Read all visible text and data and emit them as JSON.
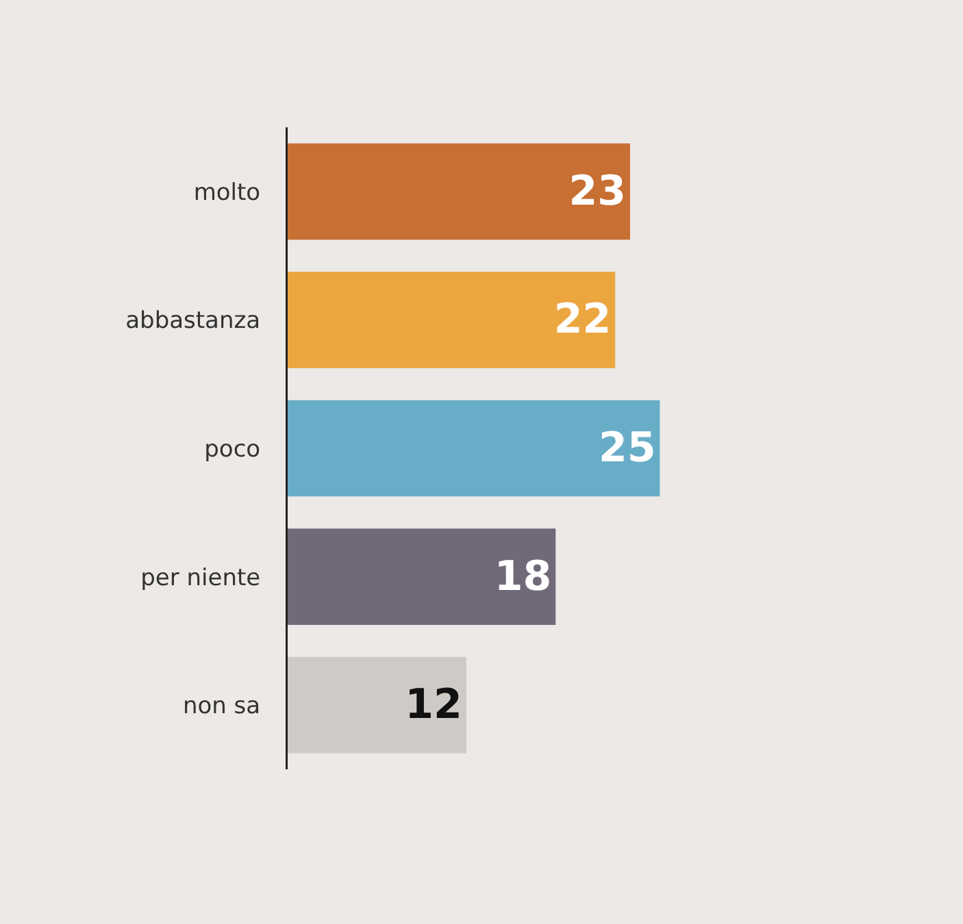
{
  "chart_data": {
    "type": "bar",
    "orientation": "horizontal",
    "categories": [
      "molto",
      "abbastanza",
      "poco",
      "per niente",
      "non sa"
    ],
    "values": [
      23,
      22,
      25,
      18,
      12
    ],
    "colors": [
      "#c86f33",
      "#eca63f",
      "#68adc8",
      "#716878",
      "#cfcac5"
    ],
    "data_labels": true,
    "tick_labels": "y"
  }
}
